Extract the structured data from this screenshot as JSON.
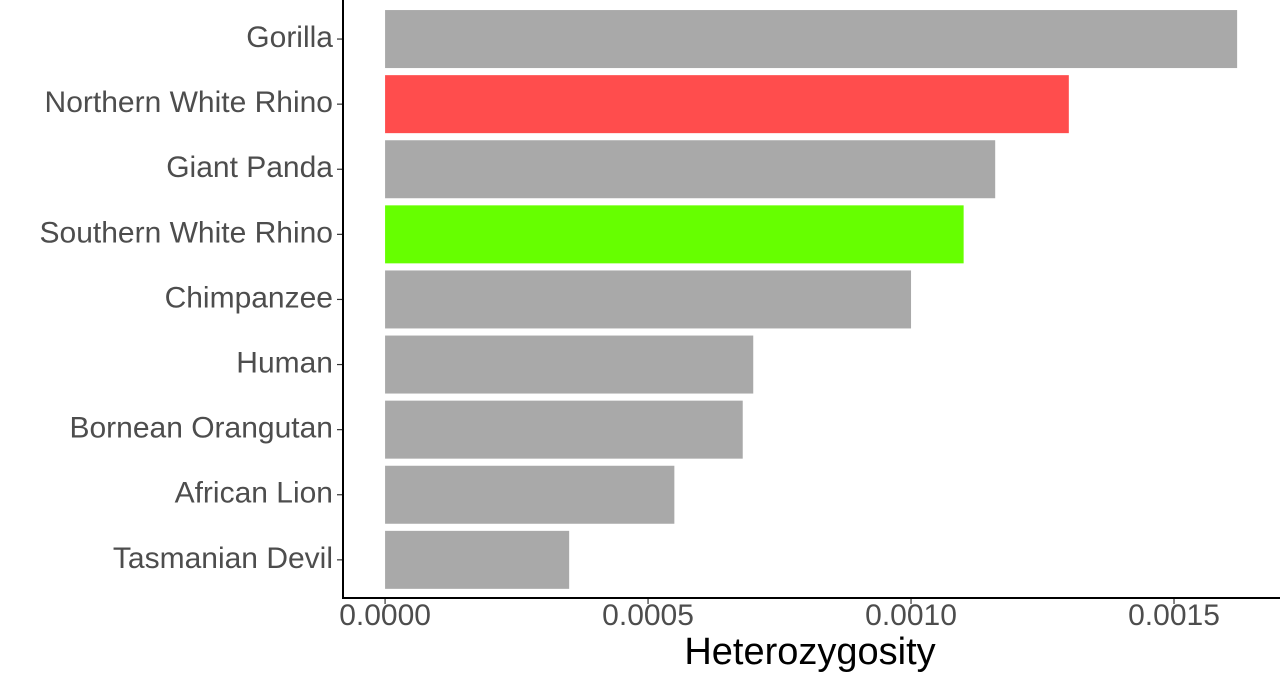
{
  "chart_data": {
    "type": "bar",
    "orientation": "horizontal",
    "x_label": "Heterozygosity",
    "categories": [
      "Gorilla",
      "Northern White Rhino",
      "Giant Panda",
      "Southern White Rhino",
      "Chimpanzee",
      "Human",
      "Bornean Orangutan",
      "African Lion",
      "Tasmanian Devil"
    ],
    "values": [
      0.00162,
      0.0013,
      0.00116,
      0.0011,
      0.001,
      0.0007,
      0.00068,
      0.00055,
      0.00035
    ],
    "colors": [
      "#a9a9a9",
      "#ff4d4d",
      "#a9a9a9",
      "#66ff00",
      "#a9a9a9",
      "#a9a9a9",
      "#a9a9a9",
      "#a9a9a9",
      "#a9a9a9"
    ],
    "xlim": [
      -8e-05,
      0.0017015
    ],
    "xticks": [
      {
        "value": 0,
        "label": "0.0000"
      },
      {
        "value": 0.0005,
        "label": "0.0005"
      },
      {
        "value": 0.001,
        "label": "0.0010"
      },
      {
        "value": 0.0015,
        "label": "0.0015"
      }
    ],
    "grid": false
  }
}
